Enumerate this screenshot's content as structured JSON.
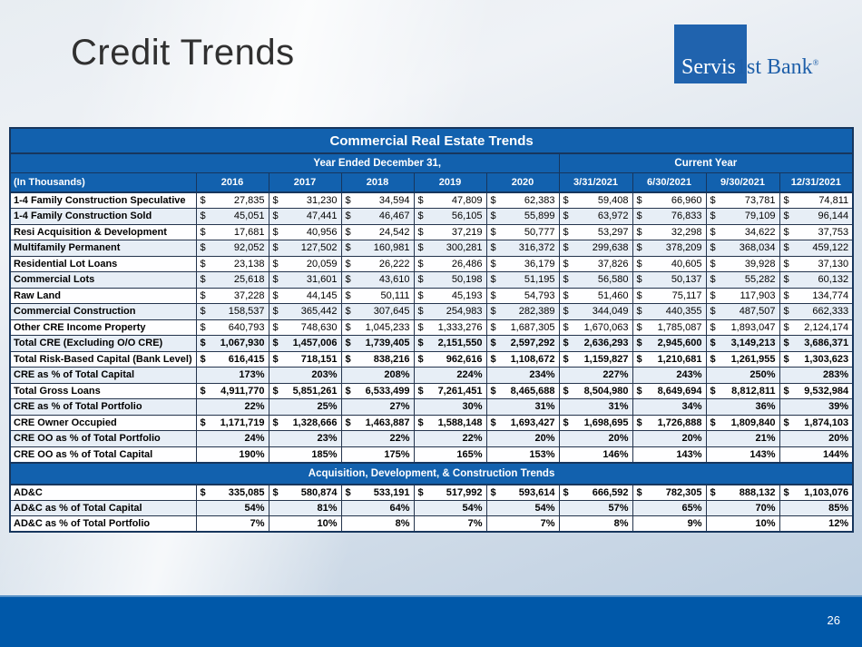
{
  "slide": {
    "title": "Credit Trends",
    "page_number": "26"
  },
  "logo": {
    "part1": "Servis",
    "part2": "1st Bank",
    "reg": "®",
    "square_color": "#2063AE"
  },
  "colors": {
    "header_blue": "#1261AE",
    "border_navy": "#17365D",
    "footer_blue": "#0058A9",
    "shade_row": "#E7EEF6"
  },
  "table": {
    "title": "Commercial Real Estate Trends",
    "col_group_left": "Year Ended December 31,",
    "col_group_right": "Current Year",
    "row_header": "(In Thousands)",
    "columns": [
      "2016",
      "2017",
      "2018",
      "2019",
      "2020",
      "3/31/2021",
      "6/30/2021",
      "9/30/2021",
      "12/31/2021"
    ],
    "sections": [
      {
        "header": null,
        "rows": [
          {
            "label": "1-4 Family Construction Speculative",
            "dollar": true,
            "bold": false,
            "values": [
              "27,835",
              "31,230",
              "34,594",
              "47,809",
              "62,383",
              "59,408",
              "66,960",
              "73,781",
              "74,811"
            ]
          },
          {
            "label": "1-4 Family Construction Sold",
            "dollar": true,
            "bold": false,
            "values": [
              "45,051",
              "47,441",
              "46,467",
              "56,105",
              "55,899",
              "63,972",
              "76,833",
              "79,109",
              "96,144"
            ]
          },
          {
            "label": "Resi Acquisition & Development",
            "dollar": true,
            "bold": false,
            "values": [
              "17,681",
              "40,956",
              "24,542",
              "37,219",
              "50,777",
              "53,297",
              "32,298",
              "34,622",
              "37,753"
            ]
          },
          {
            "label": "Multifamily Permanent",
            "dollar": true,
            "bold": false,
            "values": [
              "92,052",
              "127,502",
              "160,981",
              "300,281",
              "316,372",
              "299,638",
              "378,209",
              "368,034",
              "459,122"
            ]
          },
          {
            "label": "Residential Lot Loans",
            "dollar": true,
            "bold": false,
            "values": [
              "23,138",
              "20,059",
              "26,222",
              "26,486",
              "36,179",
              "37,826",
              "40,605",
              "39,928",
              "37,130"
            ]
          },
          {
            "label": "Commercial Lots",
            "dollar": true,
            "bold": false,
            "values": [
              "25,618",
              "31,601",
              "43,610",
              "50,198",
              "51,195",
              "56,580",
              "50,137",
              "55,282",
              "60,132"
            ]
          },
          {
            "label": "Raw Land",
            "dollar": true,
            "bold": false,
            "values": [
              "37,228",
              "44,145",
              "50,111",
              "45,193",
              "54,793",
              "51,460",
              "75,117",
              "117,903",
              "134,774"
            ]
          },
          {
            "label": "Commercial Construction",
            "dollar": true,
            "bold": false,
            "values": [
              "158,537",
              "365,442",
              "307,645",
              "254,983",
              "282,389",
              "344,049",
              "440,355",
              "487,507",
              "662,333"
            ]
          },
          {
            "label": "Other CRE Income Property",
            "dollar": true,
            "bold": false,
            "values": [
              "640,793",
              "748,630",
              "1,045,233",
              "1,333,276",
              "1,687,305",
              "1,670,063",
              "1,785,087",
              "1,893,047",
              "2,124,174"
            ]
          },
          {
            "label": "Total CRE (Excluding O/O CRE)",
            "dollar": true,
            "bold": true,
            "values": [
              "1,067,930",
              "1,457,006",
              "1,739,405",
              "2,151,550",
              "2,597,292",
              "2,636,293",
              "2,945,600",
              "3,149,213",
              "3,686,371"
            ]
          },
          {
            "label": "Total Risk-Based Capital (Bank Level)",
            "dollar": true,
            "bold": true,
            "values": [
              "616,415",
              "718,151",
              "838,216",
              "962,616",
              "1,108,672",
              "1,159,827",
              "1,210,681",
              "1,261,955",
              "1,303,623"
            ]
          },
          {
            "label": "CRE as % of Total Capital",
            "dollar": false,
            "bold": true,
            "values": [
              "173%",
              "203%",
              "208%",
              "224%",
              "234%",
              "227%",
              "243%",
              "250%",
              "283%"
            ]
          },
          {
            "label": "Total Gross Loans",
            "dollar": true,
            "bold": true,
            "values": [
              "4,911,770",
              "5,851,261",
              "6,533,499",
              "7,261,451",
              "8,465,688",
              "8,504,980",
              "8,649,694",
              "8,812,811",
              "9,532,984"
            ]
          },
          {
            "label": "CRE as % of Total Portfolio",
            "dollar": false,
            "bold": true,
            "values": [
              "22%",
              "25%",
              "27%",
              "30%",
              "31%",
              "31%",
              "34%",
              "36%",
              "39%"
            ]
          },
          {
            "label": "CRE Owner Occupied",
            "dollar": true,
            "bold": true,
            "values": [
              "1,171,719",
              "1,328,666",
              "1,463,887",
              "1,588,148",
              "1,693,427",
              "1,698,695",
              "1,726,888",
              "1,809,840",
              "1,874,103"
            ]
          },
          {
            "label": "CRE OO as % of Total Portfolio",
            "dollar": false,
            "bold": true,
            "values": [
              "24%",
              "23%",
              "22%",
              "22%",
              "20%",
              "20%",
              "20%",
              "21%",
              "20%"
            ]
          },
          {
            "label": "CRE OO as % of Total Capital",
            "dollar": false,
            "bold": true,
            "values": [
              "190%",
              "185%",
              "175%",
              "165%",
              "153%",
              "146%",
              "143%",
              "143%",
              "144%"
            ]
          }
        ]
      },
      {
        "header": "Acquisition, Development, & Construction Trends",
        "rows": [
          {
            "label": "AD&C",
            "dollar": true,
            "bold": true,
            "values": [
              "335,085",
              "580,874",
              "533,191",
              "517,992",
              "593,614",
              "666,592",
              "782,305",
              "888,132",
              "1,103,076"
            ]
          },
          {
            "label": "AD&C as % of Total Capital",
            "dollar": false,
            "bold": true,
            "values": [
              "54%",
              "81%",
              "64%",
              "54%",
              "54%",
              "57%",
              "65%",
              "70%",
              "85%"
            ]
          },
          {
            "label": "AD&C as % of Total Portfolio",
            "dollar": false,
            "bold": true,
            "values": [
              "7%",
              "10%",
              "8%",
              "7%",
              "7%",
              "8%",
              "9%",
              "10%",
              "12%"
            ]
          }
        ]
      }
    ]
  }
}
